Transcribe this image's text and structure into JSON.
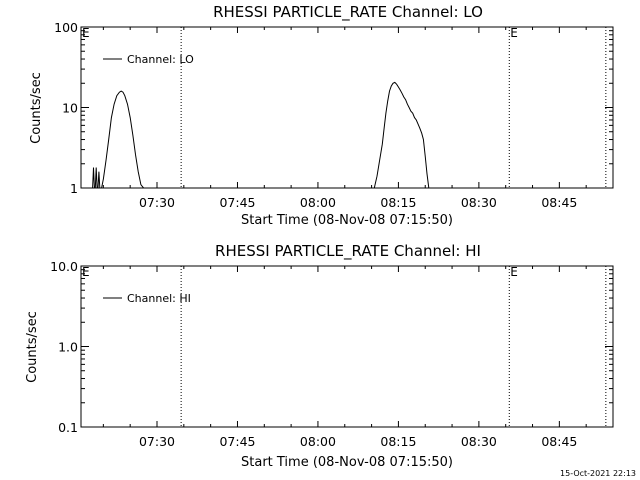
{
  "footer": {
    "timestamp": "15-Oct-2021 22:13"
  },
  "chart_data": [
    {
      "type": "line",
      "title": "RHESSI PARTICLE_RATE Channel: LO",
      "xlabel": "Start Time (08-Nov-08 07:15:50)",
      "ylabel": "Counts/sec",
      "y_scale": "log",
      "ylim": [
        1,
        100
      ],
      "xlim": [
        "07:15:50",
        "08:55:00"
      ],
      "x_ticks": [
        "07:30",
        "07:45",
        "08:00",
        "08:15",
        "08:30",
        "08:45"
      ],
      "y_ticks": [
        "1",
        "10",
        "100"
      ],
      "legend": {
        "entries": [
          "Channel: LO"
        ],
        "position": "top-left"
      },
      "grid": false,
      "event_markers": [
        {
          "time": "07:34:30",
          "label": ""
        },
        {
          "time": "08:35:40",
          "label": "E"
        },
        {
          "time": "08:53:40",
          "label": ""
        }
      ],
      "start_marker_label": "E",
      "series": [
        {
          "name": "Channel: LO",
          "x": [
            "07:18:00",
            "07:18:10",
            "07:18:20",
            "07:18:30",
            "07:18:40",
            "07:18:50",
            "07:19:00",
            "07:19:10",
            "07:19:20",
            "07:19:30",
            "07:19:40",
            "07:20:00",
            "07:20:30",
            "07:21:00",
            "07:21:30",
            "07:22:00",
            "07:22:30",
            "07:23:00",
            "07:23:20",
            "07:23:40",
            "07:24:00",
            "07:24:30",
            "07:25:00",
            "07:25:30",
            "07:26:00",
            "07:26:30",
            "07:27:00",
            "07:27:30",
            "07:28:00",
            "08:10:30",
            "08:11:00",
            "08:11:30",
            "08:12:00",
            "08:12:20",
            "08:12:40",
            "08:13:00",
            "08:13:20",
            "08:13:40",
            "08:14:00",
            "08:14:20",
            "08:14:40",
            "08:15:00",
            "08:15:20",
            "08:15:40",
            "08:16:00",
            "08:16:20",
            "08:16:40",
            "08:17:00",
            "08:17:20",
            "08:17:40",
            "08:18:00",
            "08:18:20",
            "08:18:40",
            "08:19:00",
            "08:19:20",
            "08:19:40",
            "08:20:00",
            "08:20:20",
            "08:20:40"
          ],
          "y": [
            1.0,
            1.8,
            1.0,
            1.0,
            1.8,
            1.0,
            1.0,
            1.6,
            1.0,
            1.0,
            1.0,
            1.3,
            2.2,
            4.0,
            7.5,
            11.0,
            14.0,
            15.5,
            16.0,
            15.5,
            14.0,
            11.0,
            7.5,
            4.5,
            2.6,
            1.6,
            1.1,
            1.0,
            1.0,
            1.0,
            1.4,
            2.2,
            3.5,
            5.5,
            8.5,
            12.0,
            16.0,
            18.5,
            20.0,
            20.5,
            19.5,
            18.0,
            16.5,
            15.0,
            13.5,
            12.5,
            11.0,
            10.0,
            9.0,
            8.5,
            7.5,
            7.0,
            6.2,
            5.5,
            4.8,
            4.0,
            2.5,
            1.5,
            1.0
          ]
        }
      ]
    },
    {
      "type": "line",
      "title": "RHESSI PARTICLE_RATE Channel: HI",
      "xlabel": "Start Time (08-Nov-08 07:15:50)",
      "ylabel": "Counts/sec",
      "y_scale": "log",
      "ylim": [
        0.1,
        10
      ],
      "xlim": [
        "07:15:50",
        "08:55:00"
      ],
      "x_ticks": [
        "07:30",
        "07:45",
        "08:00",
        "08:15",
        "08:30",
        "08:45"
      ],
      "y_ticks": [
        "0.1",
        "1.0",
        "10.0"
      ],
      "legend": {
        "entries": [
          "Channel: HI"
        ],
        "position": "top-left"
      },
      "grid": false,
      "event_markers": [
        {
          "time": "07:34:30",
          "label": ""
        },
        {
          "time": "08:35:40",
          "label": "E"
        },
        {
          "time": "08:53:40",
          "label": ""
        }
      ],
      "start_marker_label": "E",
      "series": [
        {
          "name": "Channel: HI",
          "x": [],
          "y": []
        }
      ]
    }
  ]
}
